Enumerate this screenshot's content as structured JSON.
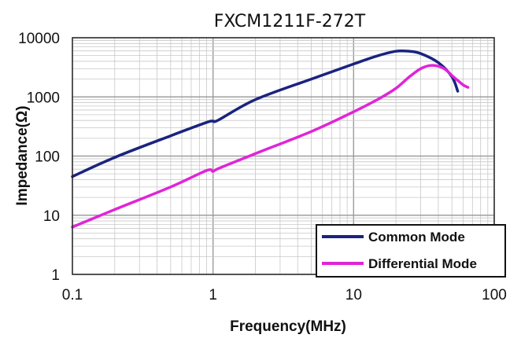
{
  "chart_data": {
    "type": "line",
    "title": "FXCM1211F-272T",
    "xlabel": "Frequency(MHz)",
    "ylabel": "Impedance(Ω)",
    "x_scale": "log",
    "y_scale": "log",
    "xlim": [
      0.1,
      100
    ],
    "ylim": [
      1,
      10000
    ],
    "x_ticks": [
      {
        "value": 0.1,
        "label": "0.1"
      },
      {
        "value": 1,
        "label": "1"
      },
      {
        "value": 10,
        "label": "10"
      },
      {
        "value": 100,
        "label": "100"
      }
    ],
    "y_ticks": [
      {
        "value": 1,
        "label": "1"
      },
      {
        "value": 10,
        "label": "10"
      },
      {
        "value": 100,
        "label": "100"
      },
      {
        "value": 1000,
        "label": "1000"
      },
      {
        "value": 10000,
        "label": "10000"
      }
    ],
    "grid": true,
    "legend_position": "bottom-right",
    "series": [
      {
        "name": "Common Mode",
        "color": "#1a237e",
        "x": [
          0.1,
          0.2,
          0.5,
          0.9,
          1.0,
          1.1,
          2,
          5,
          10,
          15,
          20,
          25,
          30,
          40,
          50,
          55
        ],
        "y": [
          45,
          95,
          220,
          370,
          390,
          410,
          900,
          2000,
          3600,
          5000,
          5900,
          5900,
          5400,
          3800,
          2200,
          1250
        ]
      },
      {
        "name": "Differential Mode",
        "color": "#e024d8",
        "x": [
          0.1,
          0.2,
          0.5,
          0.9,
          1.0,
          1.1,
          2,
          5,
          10,
          15,
          20,
          25,
          30,
          35,
          40,
          45,
          50,
          55,
          60,
          65
        ],
        "y": [
          6.3,
          12.5,
          30,
          57,
          55,
          62,
          110,
          260,
          560,
          920,
          1400,
          2200,
          3000,
          3400,
          3300,
          2900,
          2300,
          1900,
          1600,
          1450
        ]
      }
    ]
  }
}
